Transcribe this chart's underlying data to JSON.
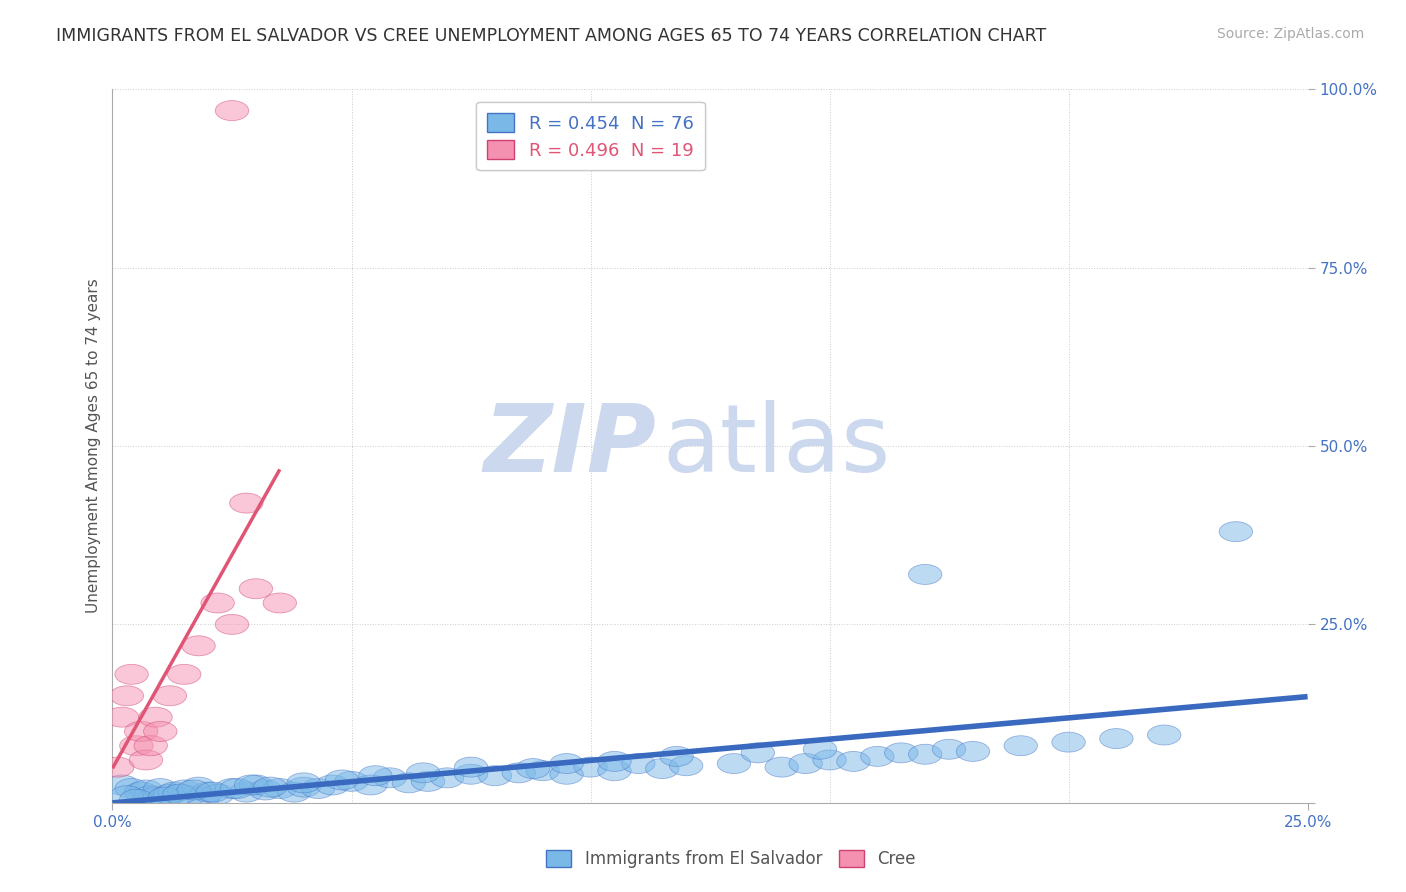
{
  "title": "IMMIGRANTS FROM EL SALVADOR VS CREE UNEMPLOYMENT AMONG AGES 65 TO 74 YEARS CORRELATION CHART",
  "source": "Source: ZipAtlas.com",
  "xlabel_label": "Immigrants from El Salvador",
  "ylabel_label": "Unemployment Among Ages 65 to 74 years",
  "xlim": [
    0.0,
    0.25
  ],
  "ylim": [
    0.0,
    1.0
  ],
  "xticks": [
    0.0,
    0.25
  ],
  "yticks": [
    0.0,
    0.25,
    0.5,
    0.75,
    1.0
  ],
  "xtick_labels": [
    "0.0%",
    "25.0%"
  ],
  "ytick_labels": [
    "",
    "25.0%",
    "50.0%",
    "75.0%",
    "100.0%"
  ],
  "grid_xticks": [
    0.0,
    0.05,
    0.1,
    0.15,
    0.2,
    0.25
  ],
  "grid_yticks": [
    0.0,
    0.25,
    0.5,
    0.75,
    1.0
  ],
  "legend_entries": [
    {
      "label": "R = 0.454  N = 76",
      "color": "#7ab8e8"
    },
    {
      "label": "R = 0.496  N = 19",
      "color": "#f490b0"
    }
  ],
  "blue_color": "#7ab8e8",
  "pink_color": "#f490b0",
  "blue_line_color": "#3a6abf",
  "pink_line_color": "#e05575",
  "watermark_zip": "ZIP",
  "watermark_atlas": "atlas",
  "watermark_color": "#ccd8ee",
  "title_fontsize": 12.5,
  "axis_label_fontsize": 11,
  "tick_fontsize": 11,
  "legend_fontsize": 13,
  "source_fontsize": 10,
  "blue_x": [
    0.235,
    0.17,
    0.002,
    0.004,
    0.006,
    0.007,
    0.008,
    0.009,
    0.01,
    0.012,
    0.013,
    0.015,
    0.016,
    0.018,
    0.019,
    0.02,
    0.022,
    0.025,
    0.028,
    0.03,
    0.032,
    0.035,
    0.038,
    0.04,
    0.043,
    0.046,
    0.05,
    0.054,
    0.058,
    0.062,
    0.066,
    0.07,
    0.075,
    0.08,
    0.085,
    0.09,
    0.095,
    0.1,
    0.105,
    0.11,
    0.115,
    0.12,
    0.13,
    0.14,
    0.145,
    0.15,
    0.155,
    0.16,
    0.165,
    0.17,
    0.175,
    0.18,
    0.19,
    0.2,
    0.21,
    0.22,
    0.003,
    0.005,
    0.011,
    0.014,
    0.017,
    0.021,
    0.026,
    0.029,
    0.033,
    0.04,
    0.048,
    0.055,
    0.065,
    0.075,
    0.088,
    0.095,
    0.105,
    0.118,
    0.135,
    0.148
  ],
  "blue_y": [
    0.38,
    0.32,
    0.025,
    0.02,
    0.015,
    0.018,
    0.01,
    0.008,
    0.02,
    0.012,
    0.015,
    0.018,
    0.01,
    0.022,
    0.008,
    0.015,
    0.012,
    0.02,
    0.015,
    0.025,
    0.018,
    0.02,
    0.015,
    0.022,
    0.02,
    0.025,
    0.03,
    0.025,
    0.035,
    0.028,
    0.03,
    0.035,
    0.04,
    0.038,
    0.042,
    0.045,
    0.04,
    0.05,
    0.045,
    0.055,
    0.048,
    0.052,
    0.055,
    0.05,
    0.055,
    0.06,
    0.058,
    0.065,
    0.07,
    0.068,
    0.075,
    0.072,
    0.08,
    0.085,
    0.09,
    0.095,
    0.01,
    0.005,
    0.008,
    0.012,
    0.018,
    0.015,
    0.02,
    0.025,
    0.022,
    0.028,
    0.032,
    0.038,
    0.042,
    0.05,
    0.048,
    0.055,
    0.058,
    0.065,
    0.07,
    0.075
  ],
  "pink_x": [
    0.025,
    0.028,
    0.001,
    0.002,
    0.003,
    0.004,
    0.005,
    0.006,
    0.007,
    0.008,
    0.009,
    0.01,
    0.012,
    0.015,
    0.018,
    0.022,
    0.025,
    0.03,
    0.035
  ],
  "pink_y": [
    0.97,
    0.42,
    0.05,
    0.12,
    0.15,
    0.18,
    0.08,
    0.1,
    0.06,
    0.08,
    0.12,
    0.1,
    0.15,
    0.18,
    0.22,
    0.28,
    0.25,
    0.3,
    0.28
  ]
}
